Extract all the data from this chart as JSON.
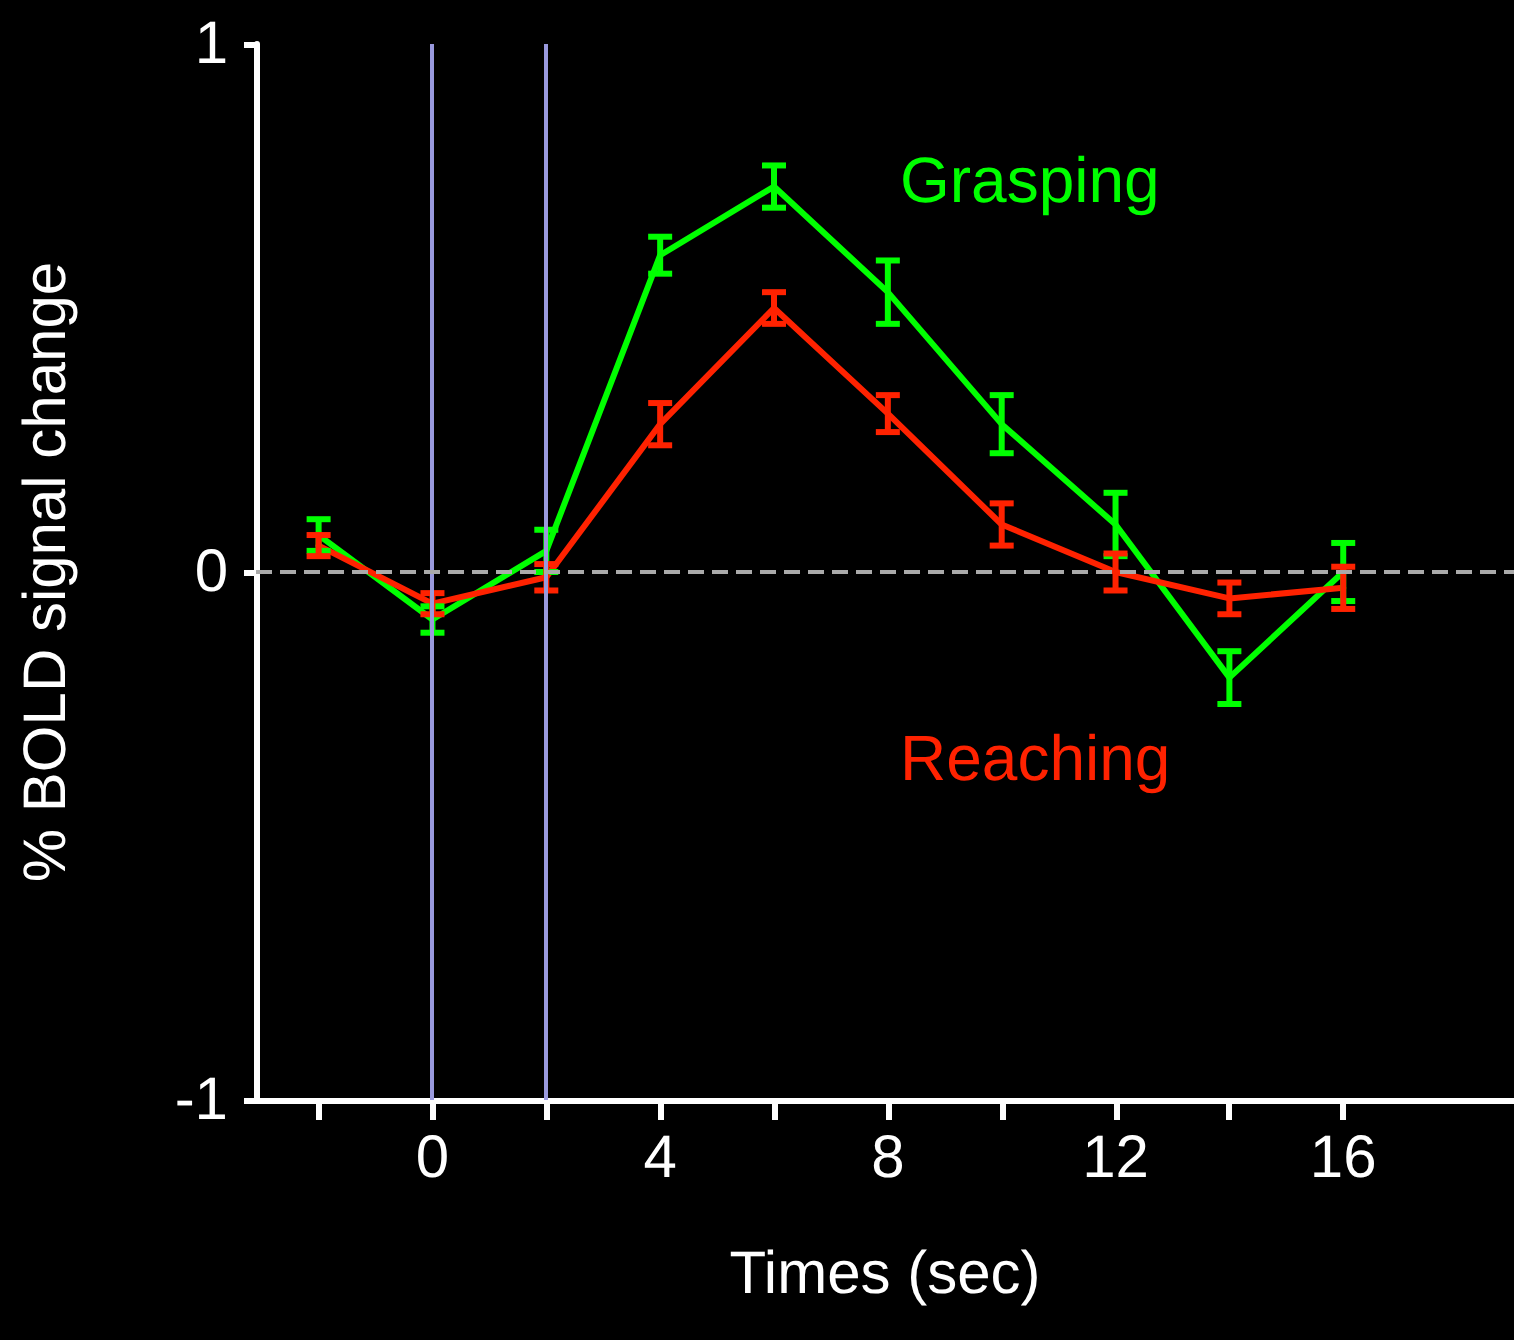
{
  "chart_data": {
    "type": "line",
    "xlabel": "Times (sec)",
    "ylabel": "% BOLD signal change",
    "x": [
      -2,
      0,
      2,
      4,
      6,
      8,
      10,
      12,
      14,
      16
    ],
    "series": [
      {
        "name": "Grasping",
        "color": "#00ff00",
        "values": [
          0.07,
          -0.09,
          0.04,
          0.6,
          0.73,
          0.53,
          0.28,
          0.09,
          -0.2,
          0.0
        ],
        "errors": [
          0.03,
          0.025,
          0.04,
          0.035,
          0.04,
          0.06,
          0.055,
          0.06,
          0.05,
          0.055
        ]
      },
      {
        "name": "Reaching",
        "color": "#ff2200",
        "values": [
          0.05,
          -0.06,
          -0.01,
          0.28,
          0.5,
          0.3,
          0.09,
          0.0,
          -0.05,
          -0.03
        ],
        "errors": [
          0.02,
          0.02,
          0.025,
          0.04,
          0.03,
          0.035,
          0.04,
          0.035,
          0.03,
          0.04
        ]
      }
    ],
    "xlim": [
      -3.1,
      19
    ],
    "ylim": [
      -1,
      1
    ],
    "xticks": [
      {
        "value": -2,
        "label": null
      },
      0,
      {
        "value": 2,
        "label": null
      },
      4,
      {
        "value": 6,
        "label": null
      },
      8,
      {
        "value": 10,
        "label": null
      },
      12,
      {
        "value": 14,
        "label": null
      },
      16
    ],
    "yticks": [
      -1,
      0,
      1
    ],
    "ref_lines": [
      {
        "axis": "x",
        "value": 0,
        "color": "#9999dd",
        "line_style": "solid"
      },
      {
        "axis": "x",
        "value": 2,
        "color": "#9999dd",
        "line_style": "solid"
      },
      {
        "axis": "y",
        "value": 0,
        "color": "#aaaaaa",
        "line_style": "dashed"
      }
    ],
    "grid": false,
    "legend": false,
    "marker": "none",
    "line_style": "solid"
  }
}
